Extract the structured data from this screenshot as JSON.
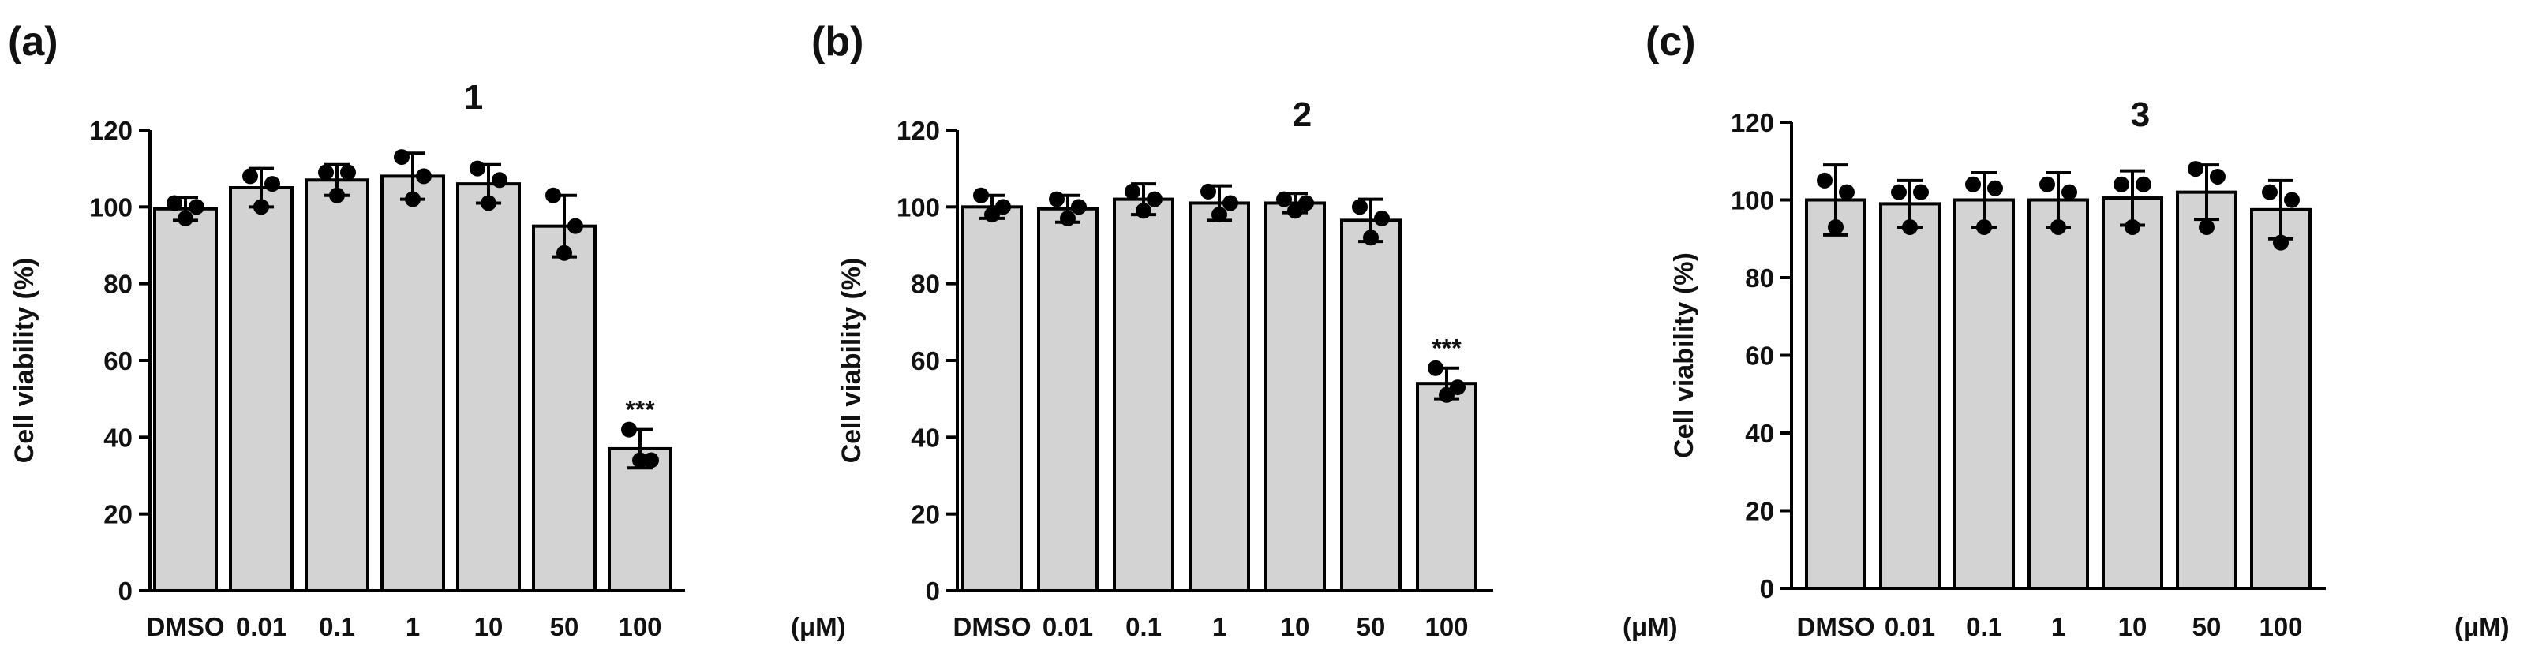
{
  "chart_data": [
    {
      "panel_label": "(a)",
      "type": "bar",
      "title": "1",
      "ylabel": "Cell viability (%)",
      "xunit": "(μM)",
      "ylim": [
        0,
        120
      ],
      "yticks": [
        "0",
        "20",
        "40",
        "60",
        "80",
        "100",
        "120"
      ],
      "categories": [
        "DMSO",
        "0.01",
        "0.1",
        "1",
        "10",
        "50",
        "100"
      ],
      "values": [
        99.5,
        105,
        107,
        108,
        106,
        95,
        37
      ],
      "sd": [
        3,
        5,
        4,
        6,
        5,
        8,
        5
      ],
      "points": [
        [
          101,
          97,
          100
        ],
        [
          108,
          100,
          106
        ],
        [
          109,
          103,
          109
        ],
        [
          113,
          102,
          108
        ],
        [
          110,
          101,
          107
        ],
        [
          103,
          88,
          95
        ],
        [
          42,
          34,
          34
        ]
      ],
      "annotations": [
        "",
        "",
        "",
        "",
        "",
        "",
        "***"
      ]
    },
    {
      "panel_label": "(b)",
      "type": "bar",
      "title": "2",
      "ylabel": "Cell viability (%)",
      "xunit": "(μM)",
      "ylim": [
        0,
        120
      ],
      "yticks": [
        "0",
        "20",
        "40",
        "60",
        "80",
        "100",
        "120"
      ],
      "categories": [
        "DMSO",
        "0.01",
        "0.1",
        "1",
        "10",
        "50",
        "100"
      ],
      "values": [
        100,
        99.5,
        102,
        101,
        101,
        96.5,
        54
      ],
      "sd": [
        3,
        3.5,
        4,
        4.5,
        2.5,
        5.5,
        4
      ],
      "points": [
        [
          103,
          98,
          100
        ],
        [
          102,
          97,
          100
        ],
        [
          104,
          99,
          102
        ],
        [
          104,
          98,
          101
        ],
        [
          102,
          99,
          101
        ],
        [
          100,
          92,
          97
        ],
        [
          58,
          51,
          53
        ]
      ],
      "annotations": [
        "",
        "",
        "",
        "",
        "",
        "",
        "***"
      ]
    },
    {
      "panel_label": "(c)",
      "type": "bar",
      "title": "3",
      "ylabel": "Cell viability (%)",
      "xunit": "(μM)",
      "ylim": [
        0,
        120
      ],
      "yticks": [
        "0",
        "20",
        "40",
        "60",
        "80",
        "100",
        "120"
      ],
      "categories": [
        "DMSO",
        "0.01",
        "0.1",
        "1",
        "10",
        "50",
        "100"
      ],
      "values": [
        100,
        99,
        100,
        100,
        100.5,
        102,
        97.5
      ],
      "sd": [
        9,
        6,
        7,
        7,
        7,
        7,
        7.5
      ],
      "points": [
        [
          105,
          93,
          102
        ],
        [
          102,
          93,
          102
        ],
        [
          104,
          93,
          103
        ],
        [
          104,
          93,
          102
        ],
        [
          104,
          93,
          104
        ],
        [
          108,
          93,
          106
        ],
        [
          102,
          89,
          100
        ]
      ],
      "annotations": [
        "",
        "",
        "",
        "",
        "",
        "",
        ""
      ]
    }
  ],
  "colors": {
    "bar_fill": "#d3d3d3",
    "bar_stroke": "#000000",
    "point": "#000000",
    "axis": "#000000"
  }
}
